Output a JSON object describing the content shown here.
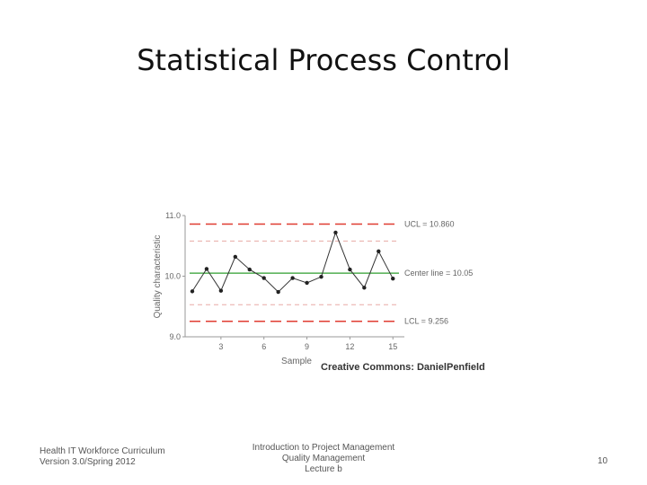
{
  "slide": {
    "title": "Statistical Process Control",
    "credit": "Creative Commons: DanielPenfield",
    "footer_left": [
      "Health IT Workforce Curriculum",
      "Version 3.0/Spring 2012"
    ],
    "footer_center": [
      "Introduction to Project Management",
      "Quality Management",
      "Lecture b"
    ],
    "page_number": "10"
  },
  "colors": {
    "limit_line": "#e03c31",
    "sigma_line": "#e8a9a5",
    "center_line": "#2e9e2e",
    "data_line": "#333333",
    "label_text": "#666666"
  },
  "chart_data": {
    "type": "line",
    "xlabel": "Sample",
    "ylabel": "Quality characteristic",
    "x": [
      1,
      2,
      3,
      4,
      5,
      6,
      7,
      8,
      9,
      10,
      11,
      12,
      13,
      14,
      15
    ],
    "x_ticks": [
      "3",
      "6",
      "9",
      "12",
      "15"
    ],
    "y_ticks": [
      "9.0",
      "10.0",
      "11.0"
    ],
    "ylim": [
      9.0,
      11.0
    ],
    "series": [
      {
        "values": [
          9.75,
          10.12,
          9.76,
          10.32,
          10.11,
          9.97,
          9.74,
          9.97,
          9.89,
          9.99,
          10.72,
          10.11,
          9.81,
          10.41,
          9.96
        ]
      }
    ],
    "limits": {
      "ucl": {
        "value": 10.86,
        "label": "UCL = 10.860"
      },
      "center": {
        "value": 10.05,
        "label": "Center line = 10.05"
      },
      "lcl": {
        "value": 9.256,
        "label": "LCL = 9.256"
      },
      "inner_dashed": [
        10.58,
        9.53
      ]
    },
    "grid": false
  }
}
